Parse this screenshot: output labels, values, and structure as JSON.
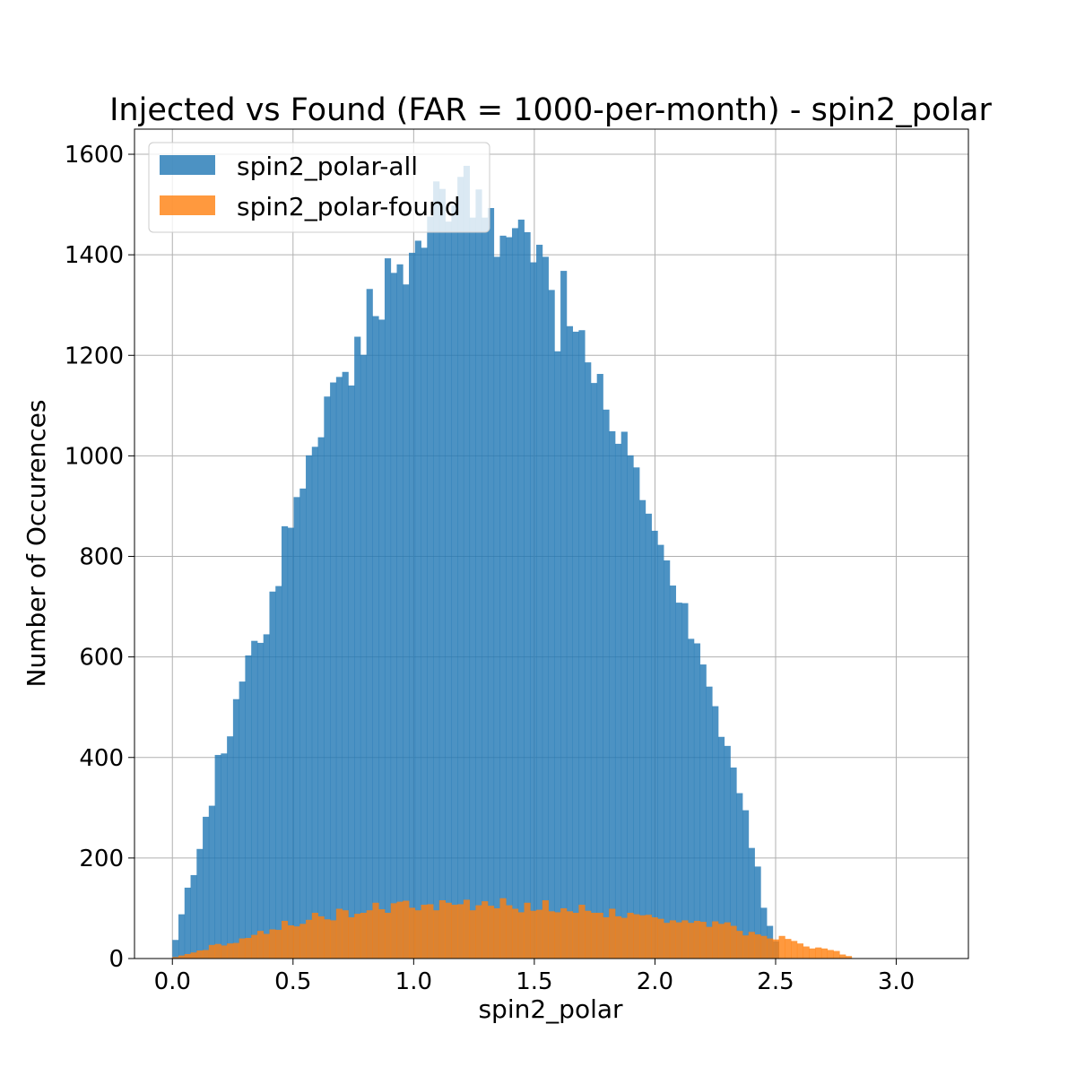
{
  "chart_data": {
    "type": "bar",
    "title": "Injected vs Found (FAR = 1000-per-month) - spin2_polar",
    "xlabel": "spin2_polar",
    "ylabel": "Number of Occurences",
    "xlim": [
      -0.157,
      3.299
    ],
    "ylim": [
      0,
      1650
    ],
    "xticks": [
      0.0,
      0.5,
      1.0,
      1.5,
      2.0,
      2.5,
      3.0
    ],
    "xtick_labels": [
      "0.0",
      "0.5",
      "1.0",
      "1.5",
      "2.0",
      "2.5",
      "3.0"
    ],
    "yticks": [
      0,
      200,
      400,
      600,
      800,
      1000,
      1200,
      1400,
      1600
    ],
    "ytick_labels": [
      "0",
      "200",
      "400",
      "600",
      "800",
      "1000",
      "1200",
      "1400",
      "1600"
    ],
    "grid": true,
    "legend_position": "top-left",
    "bin_start": 0.0,
    "bin_end": 3.1416,
    "bin_count": 125,
    "series": [
      {
        "name": "spin2_polar-all",
        "color": "#1f77b4",
        "values": [
          37,
          88,
          141,
          166,
          218,
          282,
          304,
          405,
          408,
          442,
          516,
          551,
          603,
          632,
          628,
          645,
          730,
          741,
          860,
          857,
          918,
          935,
          1001,
          1018,
          1037,
          1118,
          1146,
          1157,
          1167,
          1140,
          1237,
          1201,
          1332,
          1278,
          1271,
          1393,
          1364,
          1381,
          1341,
          1404,
          1428,
          1414,
          1476,
          1546,
          1531,
          1466,
          1498,
          1555,
          1577,
          1474,
          1530,
          1474,
          1493,
          1396,
          1438,
          1435,
          1453,
          1470,
          1445,
          1385,
          1420,
          1396,
          1330,
          1208,
          1368,
          1258,
          1247,
          1250,
          1186,
          1145,
          1163,
          1092,
          1049,
          1024,
          1048,
          1001,
          977,
          912,
          885,
          851,
          823,
          792,
          742,
          708,
          707,
          636,
          627,
          585,
          541,
          502,
          441,
          423,
          380,
          329,
          295,
          220,
          183,
          101,
          65,
          34,
          0,
          0,
          0,
          0,
          0,
          0,
          0,
          0,
          0,
          0,
          0,
          0,
          0,
          0,
          0,
          0,
          0,
          0,
          0,
          0,
          0,
          0,
          0,
          0,
          0
        ]
      },
      {
        "name": "spin2_polar-found",
        "color": "#ff7f0e",
        "values": [
          3,
          6,
          9,
          12,
          16,
          17,
          27,
          29,
          26,
          30,
          31,
          40,
          41,
          47,
          55,
          49,
          58,
          57,
          75,
          66,
          64,
          69,
          77,
          91,
          84,
          78,
          76,
          99,
          96,
          82,
          89,
          91,
          96,
          111,
          98,
          91,
          110,
          113,
          115,
          101,
          96,
          107,
          108,
          96,
          116,
          111,
          107,
          108,
          117,
          96,
          106,
          114,
          105,
          100,
          120,
          106,
          99,
          92,
          111,
          95,
          97,
          116,
          94,
          92,
          100,
          94,
          91,
          107,
          95,
          91,
          91,
          82,
          99,
          84,
          81,
          91,
          88,
          86,
          87,
          82,
          79,
          71,
          76,
          72,
          76,
          71,
          75,
          73,
          63,
          74,
          69,
          72,
          65,
          55,
          46,
          53,
          48,
          45,
          40,
          38,
          45,
          39,
          35,
          30,
          24,
          20,
          22,
          20,
          17,
          15,
          8,
          5,
          0,
          0,
          0,
          0,
          0,
          0,
          0,
          0,
          0,
          0,
          0,
          0,
          0
        ]
      }
    ]
  }
}
